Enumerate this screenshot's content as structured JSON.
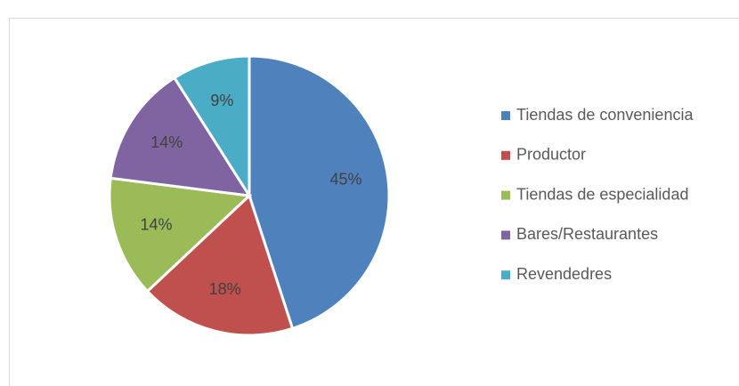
{
  "chart_data": {
    "type": "pie",
    "categories": [
      "Tiendas de conveniencia",
      "Productor",
      "Tiendas de especialidad",
      "Bares/Restaurantes",
      "Revendedres"
    ],
    "values": [
      45,
      18,
      14,
      14,
      9
    ],
    "value_labels": [
      "45%",
      "18%",
      "14%",
      "14%",
      "9%"
    ],
    "colors": [
      "#4f81bd",
      "#c0504d",
      "#9bbb59",
      "#8064a2",
      "#4bacc6"
    ],
    "legend": "right"
  }
}
